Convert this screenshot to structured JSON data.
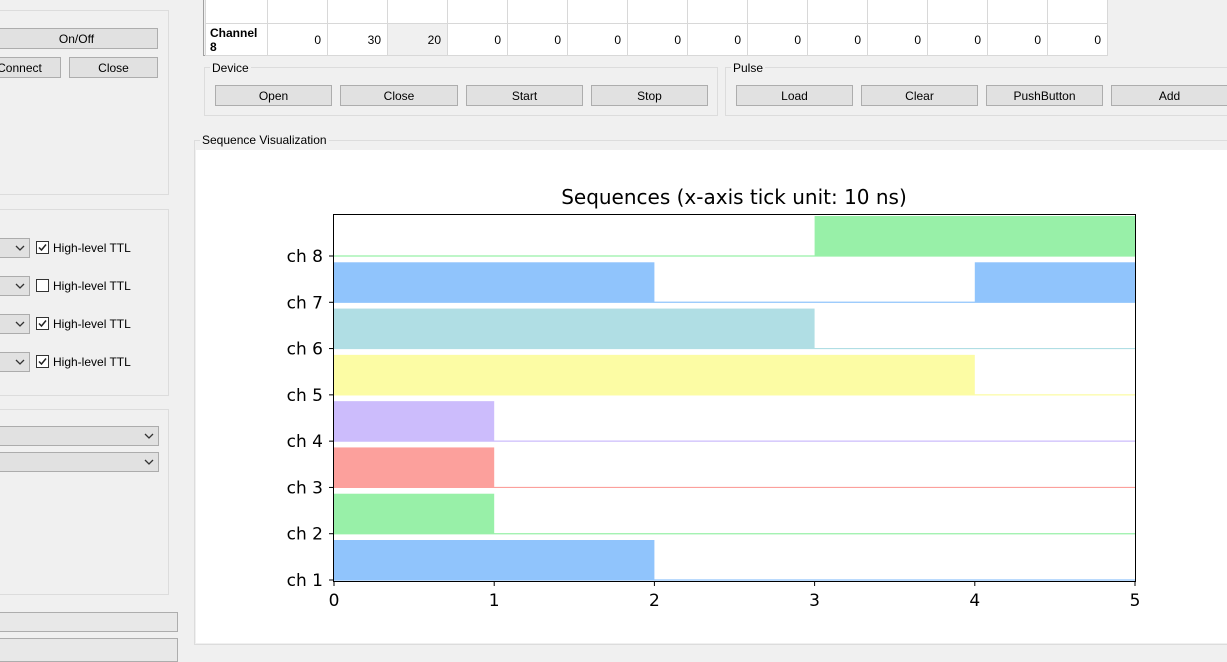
{
  "left_panel": {
    "buttons": {
      "on_off": "On/Off",
      "connect": "Connect",
      "close": "Close"
    },
    "ttl_rows": [
      {
        "label": "High-level TTL",
        "checked": true
      },
      {
        "label": "High-level TTL",
        "checked": false
      },
      {
        "label": "High-level TTL",
        "checked": true
      },
      {
        "label": "High-level TTL",
        "checked": true
      }
    ]
  },
  "channel_table": {
    "row_header": "Channel 8",
    "values": [
      "0",
      "30",
      "20",
      "0",
      "0",
      "0",
      "0",
      "0",
      "0",
      "0",
      "0",
      "0",
      "0",
      "0"
    ]
  },
  "device_group": {
    "title": "Device",
    "buttons": [
      "Open",
      "Close",
      "Start",
      "Stop"
    ]
  },
  "pulse_group": {
    "title": "Pulse",
    "buttons": [
      "Load",
      "Clear",
      "PushButton",
      "Add"
    ]
  },
  "visualization_group": {
    "title": "Sequence Visualization"
  },
  "chart_data": {
    "type": "bar",
    "orientation": "horizontal-timeline",
    "title": "Sequences (x-axis tick unit: 10 ns)",
    "xlabel": "",
    "ylabel": "",
    "xlim": [
      0,
      5
    ],
    "xticks": [
      "0",
      "1",
      "2",
      "3",
      "4",
      "5"
    ],
    "channels": [
      "ch 1",
      "ch 2",
      "ch 3",
      "ch 4",
      "ch 5",
      "ch 6",
      "ch 7",
      "ch 8"
    ],
    "series": [
      {
        "channel": "ch 1",
        "color": "#90c4fc",
        "pulses": [
          [
            0,
            2
          ]
        ]
      },
      {
        "channel": "ch 2",
        "color": "#98f0a8",
        "pulses": [
          [
            0,
            1
          ]
        ]
      },
      {
        "channel": "ch 3",
        "color": "#fca09c",
        "pulses": [
          [
            0,
            1
          ]
        ]
      },
      {
        "channel": "ch 4",
        "color": "#ccbcfc",
        "pulses": [
          [
            0,
            1
          ]
        ]
      },
      {
        "channel": "ch 5",
        "color": "#fcfca4",
        "pulses": [
          [
            0,
            4
          ]
        ]
      },
      {
        "channel": "ch 6",
        "color": "#b0dee4",
        "pulses": [
          [
            0,
            3
          ]
        ]
      },
      {
        "channel": "ch 7",
        "color": "#90c4fc",
        "pulses": [
          [
            0,
            2
          ],
          [
            4,
            5
          ]
        ]
      },
      {
        "channel": "ch 8",
        "color": "#98f0a8",
        "pulses": [
          [
            3,
            5
          ]
        ]
      }
    ]
  }
}
